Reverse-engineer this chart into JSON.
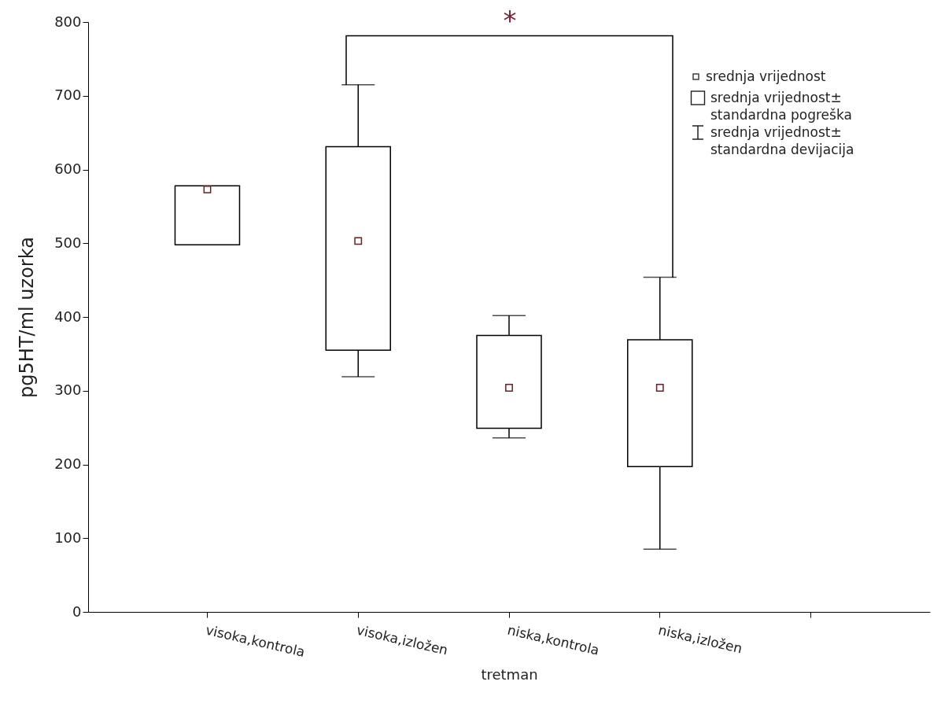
{
  "chart_data": {
    "type": "box",
    "ylabel": "pg5HT/ml uzorka",
    "xlabel": "tretman",
    "categories": [
      "visoka,kontrola",
      "visoka,izložen",
      "niska,kontrola",
      "niska,izložen",
      null
    ],
    "boxes": [
      {
        "low": 498,
        "q1": 498,
        "q3": 578,
        "high": 578,
        "mean": 573
      },
      {
        "low": 319,
        "q1": 355,
        "q3": 631,
        "high": 715,
        "mean": 503
      },
      {
        "low": 236,
        "q1": 249,
        "q3": 375,
        "high": 402,
        "mean": 304
      },
      {
        "low": 85,
        "q1": 197,
        "q3": 369,
        "high": 454,
        "mean": 304
      },
      null
    ],
    "ylim": [
      0,
      800
    ],
    "yticks": [
      0,
      100,
      200,
      300,
      400,
      500,
      600,
      700,
      800
    ],
    "annotations": [
      "*",
      "srednja vrijednost",
      "srednja vrijednost± standardna pogreška",
      "srednja vrijednost± standardna devijacija"
    ]
  }
}
